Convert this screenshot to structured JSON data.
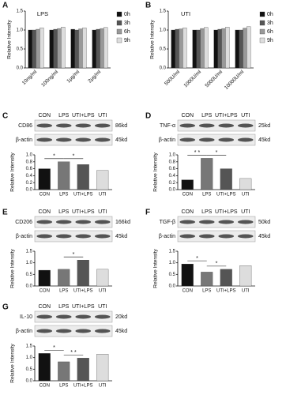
{
  "chart_data": [
    {
      "type": "grouped-bar",
      "panel": "A",
      "title": "LPS",
      "y_label": "Relative Intensity",
      "categories": [
        "10ng/ml",
        "100ng/ml",
        "1μg/ml",
        "2μg/ml"
      ],
      "series": [
        {
          "name": "0h",
          "color": "#111111",
          "values": [
            1.0,
            1.0,
            1.02,
            1.0
          ]
        },
        {
          "name": "3h",
          "color": "#555555",
          "values": [
            1.0,
            1.02,
            1.0,
            1.02
          ]
        },
        {
          "name": "6h",
          "color": "#999999",
          "values": [
            1.02,
            1.04,
            1.03,
            1.04
          ]
        },
        {
          "name": "9h",
          "color": "#dddddd",
          "values": [
            1.06,
            1.08,
            1.06,
            1.07
          ]
        }
      ],
      "ylim": [
        0,
        1.5
      ],
      "yticks": [
        {
          "value": 0,
          "label": "0.0"
        },
        0.5,
        {
          "value": 1,
          "label": "1.0"
        },
        1.5
      ]
    },
    {
      "type": "grouped-bar",
      "panel": "B",
      "title": "UTI",
      "y_label": "Relative Intensity",
      "categories": [
        "500U/ml",
        "1000U/ml",
        "5000U/ml",
        "10000U/ml"
      ],
      "series": [
        {
          "name": "0h",
          "color": "#111111",
          "values": [
            1.0,
            1.0,
            1.0,
            1.0
          ]
        },
        {
          "name": "3h",
          "color": "#555555",
          "values": [
            1.02,
            1.0,
            1.02,
            1.0
          ]
        },
        {
          "name": "6h",
          "color": "#999999",
          "values": [
            1.03,
            1.04,
            1.04,
            1.05
          ]
        },
        {
          "name": "9h",
          "color": "#dddddd",
          "values": [
            1.06,
            1.07,
            1.08,
            1.09
          ]
        }
      ],
      "ylim": [
        0,
        1.5
      ],
      "yticks": [
        {
          "value": 0,
          "label": "0.0"
        },
        0.5,
        {
          "value": 1,
          "label": "1.0"
        },
        1.5
      ]
    },
    {
      "type": "blot-bar",
      "panel": "C",
      "lanes": [
        "CON",
        "LPS",
        "UTI+LPS",
        "UTI"
      ],
      "blots": [
        {
          "label": "CD86",
          "size": "86kd"
        },
        {
          "label": "β-actin",
          "size": "45kd"
        }
      ],
      "y_label": "Relative Intensity",
      "categories": [
        "CON",
        "LPS",
        "UTI+LPS",
        "UTI"
      ],
      "values": [
        0.6,
        0.8,
        0.72,
        0.55
      ],
      "colors": [
        "#111111",
        "#777777",
        "#555555",
        "#dddddd"
      ],
      "ylim": [
        0,
        1.0
      ],
      "yticks": [
        {
          "value": 0,
          "label": "0.0"
        },
        0.2,
        0.4,
        0.6,
        0.8,
        {
          "value": 1,
          "label": "1.0"
        }
      ],
      "annotations": [
        {
          "text": "*",
          "from": 0,
          "to": 1
        },
        {
          "text": "*",
          "from": 1,
          "to": 2
        }
      ]
    },
    {
      "type": "blot-bar",
      "panel": "D",
      "lanes": [
        "CON",
        "LPS",
        "UTI+LPS",
        "UTI"
      ],
      "blots": [
        {
          "label": "TNF-α",
          "size": "25kd"
        },
        {
          "label": "β-actin",
          "size": "45kd"
        }
      ],
      "y_label": "Relative Intensity",
      "categories": [
        "CON",
        "LPS",
        "UTI+LPS",
        "UTI"
      ],
      "values": [
        0.28,
        0.9,
        0.6,
        0.32
      ],
      "colors": [
        "#111111",
        "#777777",
        "#555555",
        "#dddddd"
      ],
      "ylim": [
        0,
        1.0
      ],
      "yticks": [
        {
          "value": 0,
          "label": "0.0"
        },
        0.2,
        0.4,
        0.6,
        0.8,
        {
          "value": 1,
          "label": "1.0"
        }
      ],
      "annotations": [
        {
          "text": "* *",
          "from": 0,
          "to": 1
        },
        {
          "text": "*",
          "from": 1,
          "to": 2
        }
      ]
    },
    {
      "type": "blot-bar",
      "panel": "E",
      "lanes": [
        "CON",
        "LPS",
        "UTI+LPS",
        "UTI"
      ],
      "blots": [
        {
          "label": "CD206",
          "size": "166kd"
        },
        {
          "label": "β-actin",
          "size": "45kd"
        }
      ],
      "y_label": "Relative Intensity",
      "categories": [
        "CON",
        "LPS",
        "UTI+LPS",
        "UTI"
      ],
      "values": [
        0.68,
        0.72,
        1.12,
        0.72
      ],
      "colors": [
        "#111111",
        "#777777",
        "#555555",
        "#dddddd"
      ],
      "ylim": [
        0,
        1.5
      ],
      "yticks": [
        {
          "value": 0,
          "label": "0.0"
        },
        0.5,
        {
          "value": 1,
          "label": "1.0"
        },
        1.5
      ],
      "annotations": [
        {
          "text": "*",
          "from": 1,
          "to": 2
        }
      ]
    },
    {
      "type": "blot-bar",
      "panel": "F",
      "lanes": [
        "CON",
        "LPS",
        "UTI+LPS",
        "UTI"
      ],
      "blots": [
        {
          "label": "TGF-β",
          "size": "50kd"
        },
        {
          "label": "β-actin",
          "size": "45kd"
        }
      ],
      "y_label": "Relative Intensity",
      "categories": [
        "CON",
        "LPS",
        "UTI+LPS",
        "UTI"
      ],
      "values": [
        0.95,
        0.6,
        0.72,
        0.88
      ],
      "colors": [
        "#111111",
        "#777777",
        "#555555",
        "#dddddd"
      ],
      "ylim": [
        0,
        1.5
      ],
      "yticks": [
        {
          "value": 0,
          "label": "0.0"
        },
        0.5,
        {
          "value": 1,
          "label": "1.0"
        },
        1.5
      ],
      "annotations": [
        {
          "text": "*",
          "from": 0,
          "to": 1
        },
        {
          "text": "*",
          "from": 1,
          "to": 2
        }
      ]
    },
    {
      "type": "blot-bar",
      "panel": "G",
      "lanes": [
        "CON",
        "LPS",
        "UTI+LPS",
        "UTI"
      ],
      "blots": [
        {
          "label": "IL-10",
          "size": "20kd"
        },
        {
          "label": "β-actin",
          "size": "45kd"
        }
      ],
      "y_label": "Relative Intensity",
      "categories": [
        "CON",
        "LPS",
        "UTI+LPS",
        "UTI"
      ],
      "values": [
        1.18,
        0.82,
        0.98,
        1.15
      ],
      "colors": [
        "#111111",
        "#777777",
        "#555555",
        "#dddddd"
      ],
      "ylim": [
        0,
        1.5
      ],
      "yticks": [
        {
          "value": 0,
          "label": "0.0"
        },
        0.5,
        {
          "value": 1,
          "label": "1.0"
        },
        1.5
      ],
      "annotations": [
        {
          "text": "*",
          "from": 0,
          "to": 1
        },
        {
          "text": "* *",
          "from": 1,
          "to": 2
        }
      ]
    }
  ]
}
